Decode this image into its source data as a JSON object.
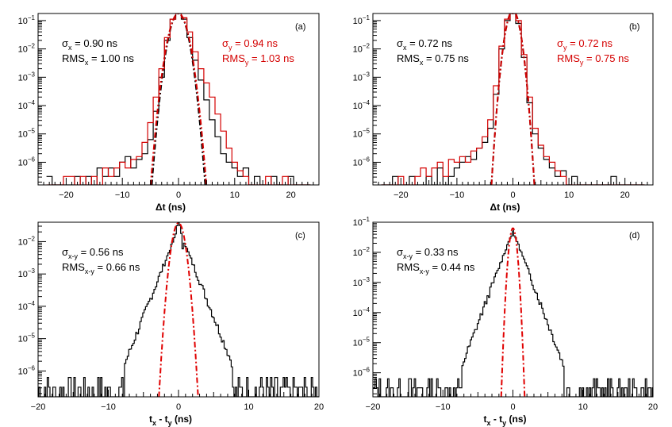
{
  "chart_data": [
    {
      "type": "line",
      "panel_label": "(a)",
      "xlabel": "Δt (ns)",
      "xlim": [
        -25,
        25
      ],
      "ylog": true,
      "ylim_exp": [
        -6.8,
        -0.75
      ],
      "x_ticks": [
        -20,
        -10,
        0,
        10,
        20
      ],
      "y_tick_exps": [
        -1,
        -2,
        -3,
        -4,
        -5,
        -6
      ],
      "annotations_left": [
        {
          "sym": "σ",
          "sub": "x",
          "rest": " = 0.90 ns"
        },
        {
          "sym": "RMS",
          "sub": "x",
          "rest": " = 1.00 ns"
        }
      ],
      "annotations_right": [
        {
          "sym": "σ",
          "sub": "y",
          "rest": " = 0.94 ns"
        },
        {
          "sym": "RMS",
          "sub": "y",
          "rest": " = 1.03 ns"
        }
      ],
      "series": [
        {
          "name": "x",
          "color": "#000000",
          "style": "histogram",
          "x": [
            -23,
            -22,
            -21,
            -20,
            -19,
            -18,
            -17,
            -16,
            -15,
            -14,
            -13,
            -12,
            -11,
            -10,
            -9,
            -8,
            -7,
            -6,
            -5,
            -4,
            -3,
            -2,
            -1,
            0,
            1,
            2,
            3,
            4,
            5,
            6,
            7,
            8,
            9,
            10,
            11,
            12,
            13,
            14,
            15,
            16,
            17,
            18,
            19,
            20,
            21,
            22,
            23
          ],
          "log10y": [
            -6.5,
            -6.8,
            -6.8,
            -6.8,
            -6.8,
            -6.5,
            -6.8,
            -6.5,
            -6.8,
            -6.2,
            -6.5,
            -6.2,
            -6.5,
            -6.0,
            -5.8,
            -6.2,
            -5.9,
            -5.7,
            -5.2,
            -4.2,
            -3.0,
            -1.7,
            -0.95,
            -0.75,
            -0.95,
            -1.6,
            -2.4,
            -3.1,
            -3.8,
            -4.5,
            -5.1,
            -5.7,
            -6.0,
            -6.2,
            -6.5,
            -6.2,
            -6.8,
            -6.5,
            -6.8,
            -6.8,
            -6.5,
            -6.8,
            -6.8,
            -6.5,
            -6.8,
            -6.8,
            -6.8
          ]
        },
        {
          "name": "y",
          "color": "#d40000",
          "style": "histogram",
          "x": [
            -23,
            -22,
            -21,
            -20,
            -19,
            -18,
            -17,
            -16,
            -15,
            -14,
            -13,
            -12,
            -11,
            -10,
            -9,
            -8,
            -7,
            -6,
            -5,
            -4,
            -3,
            -2,
            -1,
            0,
            1,
            2,
            3,
            4,
            5,
            6,
            7,
            8,
            9,
            10,
            11,
            12,
            13,
            14,
            15,
            16,
            17,
            18,
            19,
            20,
            21,
            22,
            23
          ],
          "log10y": [
            -6.8,
            -6.8,
            -6.8,
            -6.5,
            -6.5,
            -6.8,
            -6.5,
            -6.8,
            -6.5,
            -6.8,
            -6.2,
            -6.5,
            -6.2,
            -6.0,
            -6.2,
            -5.9,
            -5.8,
            -5.3,
            -4.6,
            -3.7,
            -2.7,
            -1.6,
            -0.95,
            -0.75,
            -0.9,
            -1.4,
            -2.1,
            -2.7,
            -3.2,
            -3.7,
            -4.3,
            -4.9,
            -5.5,
            -6.0,
            -6.3,
            -6.5,
            -6.8,
            -6.8,
            -6.8,
            -6.5,
            -6.8,
            -6.8,
            -6.5,
            -6.8,
            -6.8,
            -6.8,
            -6.8
          ]
        },
        {
          "name": "gauss-x",
          "color": "#000000",
          "style": "gaussfit",
          "sigma": 0.9,
          "peak_log10": -0.75
        },
        {
          "name": "gauss-y",
          "color": "#d40000",
          "style": "gaussfit",
          "sigma": 0.94,
          "peak_log10": -0.75
        }
      ]
    },
    {
      "type": "line",
      "panel_label": "(b)",
      "xlabel": "Δt (ns)",
      "xlim": [
        -25,
        25
      ],
      "ylog": true,
      "ylim_exp": [
        -6.8,
        -0.75
      ],
      "x_ticks": [
        -20,
        -10,
        0,
        10,
        20
      ],
      "y_tick_exps": [
        -1,
        -2,
        -3,
        -4,
        -5,
        -6
      ],
      "annotations_left": [
        {
          "sym": "σ",
          "sub": "x",
          "rest": " = 0.72 ns"
        },
        {
          "sym": "RMS",
          "sub": "x",
          "rest": " = 0.75 ns"
        }
      ],
      "annotations_right": [
        {
          "sym": "σ",
          "sub": "y",
          "rest": " = 0.72 ns"
        },
        {
          "sym": "RMS",
          "sub": "y",
          "rest": " = 0.75 ns"
        }
      ],
      "series": [
        {
          "name": "x",
          "color": "#000000",
          "style": "histogram",
          "x": [
            -23,
            -22,
            -21,
            -20,
            -19,
            -18,
            -17,
            -16,
            -15,
            -14,
            -13,
            -12,
            -11,
            -10,
            -9,
            -8,
            -7,
            -6,
            -5,
            -4,
            -3,
            -2,
            -1,
            0,
            1,
            2,
            3,
            4,
            5,
            6,
            7,
            8,
            9,
            10,
            11,
            12,
            13,
            14,
            15,
            16,
            17,
            18,
            19,
            20,
            21,
            22,
            23
          ],
          "log10y": [
            -6.8,
            -6.8,
            -6.5,
            -6.8,
            -6.8,
            -6.5,
            -6.8,
            -6.8,
            -6.5,
            -6.8,
            -6.2,
            -6.8,
            -6.5,
            -6.2,
            -6.0,
            -5.8,
            -5.9,
            -5.5,
            -5.3,
            -4.8,
            -3.6,
            -2.0,
            -1.0,
            -0.65,
            -1.1,
            -2.3,
            -3.9,
            -5.0,
            -5.5,
            -5.9,
            -6.2,
            -6.5,
            -6.3,
            -6.8,
            -6.5,
            -6.8,
            -6.8,
            -6.8,
            -6.8,
            -6.8,
            -6.8,
            -6.5,
            -6.8,
            -6.8,
            -6.8,
            -6.8,
            -6.8
          ]
        },
        {
          "name": "y",
          "color": "#d40000",
          "style": "histogram",
          "x": [
            -23,
            -22,
            -21,
            -20,
            -19,
            -18,
            -17,
            -16,
            -15,
            -14,
            -13,
            -12,
            -11,
            -10,
            -9,
            -8,
            -7,
            -6,
            -5,
            -4,
            -3,
            -2,
            -1,
            0,
            1,
            2,
            3,
            4,
            5,
            6,
            7,
            8,
            9,
            10,
            11,
            12,
            13,
            14,
            15,
            16,
            17,
            18,
            19,
            20,
            21,
            22,
            23
          ],
          "log10y": [
            -6.8,
            -6.8,
            -6.8,
            -6.5,
            -6.8,
            -6.8,
            -6.5,
            -6.2,
            -6.5,
            -6.2,
            -6.0,
            -6.5,
            -5.9,
            -6.0,
            -5.8,
            -6.0,
            -5.6,
            -5.5,
            -5.1,
            -4.5,
            -3.3,
            -1.9,
            -0.95,
            -0.65,
            -1.0,
            -2.2,
            -3.7,
            -4.8,
            -5.4,
            -5.8,
            -6.0,
            -6.3,
            -6.5,
            -6.8,
            -6.8,
            -6.8,
            -6.8,
            -6.8,
            -6.8,
            -6.8,
            -6.8,
            -6.8,
            -6.8,
            -6.8,
            -6.8,
            -6.8,
            -6.8
          ]
        },
        {
          "name": "gauss-x",
          "color": "#000000",
          "style": "gaussfit",
          "sigma": 0.72,
          "peak_log10": -0.65
        },
        {
          "name": "gauss-y",
          "color": "#d40000",
          "style": "gaussfit",
          "sigma": 0.72,
          "peak_log10": -0.65
        }
      ]
    },
    {
      "type": "line",
      "panel_label": "(c)",
      "xlabel_parts": {
        "a": "t",
        "a_sub": "x",
        "mid": " - t",
        "b_sub": "y",
        "end": " (ns)"
      },
      "xlim": [
        -20,
        20
      ],
      "ylog": true,
      "ylim_exp": [
        -6.8,
        -1.4
      ],
      "x_ticks": [
        -20,
        -10,
        0,
        10,
        20
      ],
      "y_tick_exps": [
        -2,
        -3,
        -4,
        -5,
        -6
      ],
      "annotations_left": [
        {
          "sym": "σ",
          "sub": "x-y",
          "rest": " = 0.56 ns"
        },
        {
          "sym": "RMS",
          "sub": "x-y",
          "rest": " = 0.66 ns"
        }
      ],
      "annotations_right": [],
      "series": [
        {
          "name": "x-y",
          "color": "#000000",
          "style": "histogram",
          "shape": "laplace",
          "peak_log10": -1.42,
          "slope": 0.55,
          "core": 0.6,
          "step": 0.2,
          "seed": 7
        },
        {
          "name": "gauss",
          "color": "#e00000",
          "style": "gaussfit",
          "sigma": 0.56,
          "peak_log10": -1.42
        }
      ]
    },
    {
      "type": "line",
      "panel_label": "(d)",
      "xlabel_parts": {
        "a": "t",
        "a_sub": "x",
        "mid": " - t",
        "b_sub": "y",
        "end": " (ns)"
      },
      "xlim": [
        -20,
        20
      ],
      "ylog": true,
      "ylim_exp": [
        -6.8,
        -1.0
      ],
      "x_ticks": [
        -20,
        -10,
        0,
        10,
        20
      ],
      "y_tick_exps": [
        -1,
        -2,
        -3,
        -4,
        -5,
        -6
      ],
      "annotations_left": [
        {
          "sym": "σ",
          "sub": "x-y",
          "rest": " = 0.33 ns"
        },
        {
          "sym": "RMS",
          "sub": "x-y",
          "rest": " = 0.44 ns"
        }
      ],
      "annotations_right": [],
      "series": [
        {
          "name": "x-y",
          "color": "#000000",
          "style": "histogram",
          "shape": "laplace",
          "peak_log10": -1.2,
          "slope": 0.62,
          "core": 0.35,
          "step": 0.2,
          "seed": 13
        },
        {
          "name": "gauss",
          "color": "#e00000",
          "style": "gaussfit",
          "sigma": 0.33,
          "peak_log10": -1.2
        }
      ]
    }
  ]
}
